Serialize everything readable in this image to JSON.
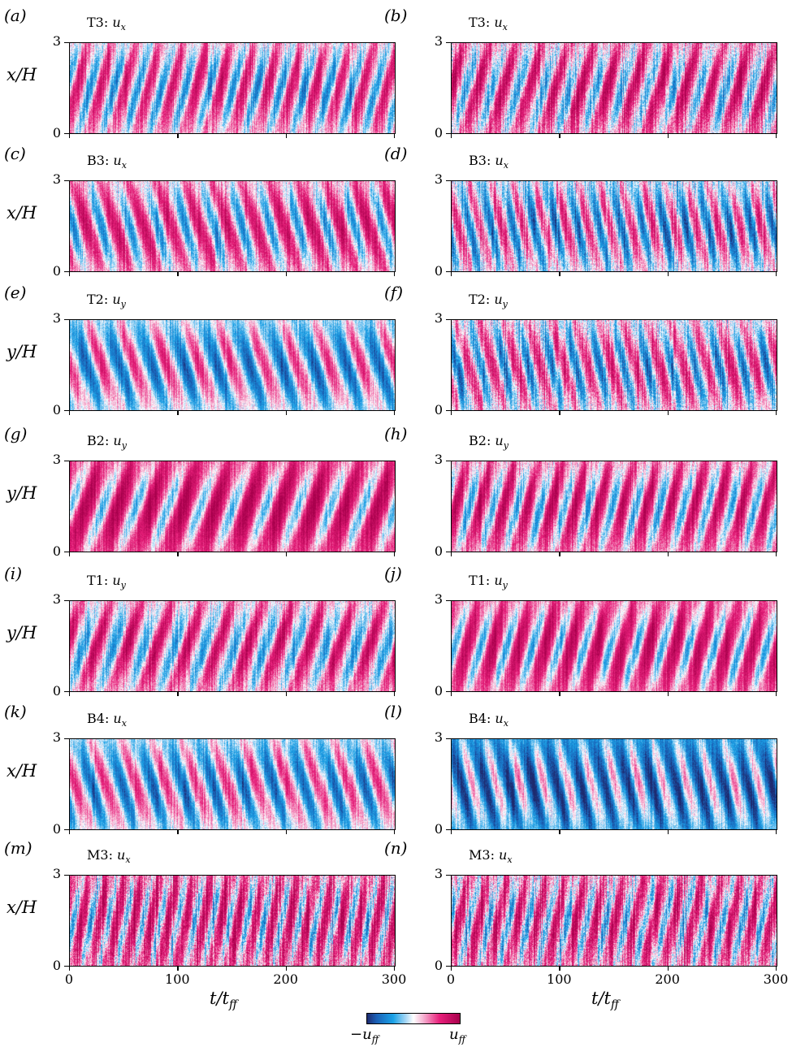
{
  "panels": [
    {
      "label": "(a)",
      "station": "T3:",
      "var": "u",
      "sub": "x",
      "ylabel": "x/H",
      "show_ylabel": true
    },
    {
      "label": "(b)",
      "station": "T3:",
      "var": "u",
      "sub": "x",
      "ylabel": "",
      "show_ylabel": false
    },
    {
      "label": "(c)",
      "station": "B3:",
      "var": "u",
      "sub": "x",
      "ylabel": "x/H",
      "show_ylabel": true
    },
    {
      "label": "(d)",
      "station": "B3:",
      "var": "u",
      "sub": "x",
      "ylabel": "",
      "show_ylabel": false
    },
    {
      "label": "(e)",
      "station": "T2:",
      "var": "u",
      "sub": "y",
      "ylabel": "y/H",
      "show_ylabel": true
    },
    {
      "label": "(f)",
      "station": "T2:",
      "var": "u",
      "sub": "y",
      "ylabel": "",
      "show_ylabel": false
    },
    {
      "label": "(g)",
      "station": "B2:",
      "var": "u",
      "sub": "y",
      "ylabel": "y/H",
      "show_ylabel": true
    },
    {
      "label": "(h)",
      "station": "B2:",
      "var": "u",
      "sub": "y",
      "ylabel": "",
      "show_ylabel": false
    },
    {
      "label": "(i)",
      "station": "T1:",
      "var": "u",
      "sub": "y",
      "ylabel": "y/H",
      "show_ylabel": true
    },
    {
      "label": "(j)",
      "station": "T1:",
      "var": "u",
      "sub": "y",
      "ylabel": "",
      "show_ylabel": false
    },
    {
      "label": "(k)",
      "station": "B4:",
      "var": "u",
      "sub": "x",
      "ylabel": "x/H",
      "show_ylabel": true
    },
    {
      "label": "(l)",
      "station": "B4:",
      "var": "u",
      "sub": "x",
      "ylabel": "",
      "show_ylabel": false
    },
    {
      "label": "(m)",
      "station": "M3:",
      "var": "u",
      "sub": "x",
      "ylabel": "x/H",
      "show_ylabel": true
    },
    {
      "label": "(n)",
      "station": "M3:",
      "var": "u",
      "sub": "x",
      "ylabel": "",
      "show_ylabel": false
    }
  ],
  "axes": {
    "y_ticks": [
      "0",
      "3"
    ],
    "x_ticks": [
      "0",
      "100",
      "200",
      "300"
    ],
    "xlabel_main": "t/t",
    "xlabel_sub": "ff"
  },
  "colorbar": {
    "min_label": "−u",
    "max_label": "u",
    "sub": "ff"
  },
  "chart_data": {
    "type": "heatmap",
    "x_range": [
      0,
      300
    ],
    "y_range": [
      0,
      3
    ],
    "colormap": [
      "#1e2a6e",
      "#1aa1e6",
      "#ffffff",
      "#e8207b",
      "#a8004c"
    ],
    "panels": [
      {
        "id": "a",
        "bias": 0.15,
        "period": 22,
        "slope": 1,
        "noise": 0.55
      },
      {
        "id": "b",
        "bias": 0.25,
        "period": 24,
        "slope": 1,
        "noise": 0.7
      },
      {
        "id": "c",
        "bias": 0.2,
        "period": 26,
        "slope": -1,
        "noise": 0.55
      },
      {
        "id": "d",
        "bias": -0.05,
        "period": 20,
        "slope": -1,
        "noise": 0.65
      },
      {
        "id": "e",
        "bias": -0.1,
        "period": 30,
        "slope": -1,
        "noise": 0.45
      },
      {
        "id": "f",
        "bias": 0.05,
        "period": 22,
        "slope": -1,
        "noise": 0.7
      },
      {
        "id": "g",
        "bias": 0.45,
        "period": 30,
        "slope": 1,
        "noise": 0.45
      },
      {
        "id": "h",
        "bias": 0.3,
        "period": 22,
        "slope": 1,
        "noise": 0.55
      },
      {
        "id": "i",
        "bias": 0.2,
        "period": 28,
        "slope": 1,
        "noise": 0.55
      },
      {
        "id": "j",
        "bias": 0.35,
        "period": 24,
        "slope": 1,
        "noise": 0.45
      },
      {
        "id": "k",
        "bias": -0.1,
        "period": 28,
        "slope": -1,
        "noise": 0.45
      },
      {
        "id": "l",
        "bias": -0.45,
        "period": 22,
        "slope": -1,
        "noise": 0.45
      },
      {
        "id": "m",
        "bias": 0.35,
        "period": 16,
        "slope": 1,
        "noise": 0.85
      },
      {
        "id": "n",
        "bias": 0.25,
        "period": 18,
        "slope": 1,
        "noise": 0.85
      }
    ]
  }
}
